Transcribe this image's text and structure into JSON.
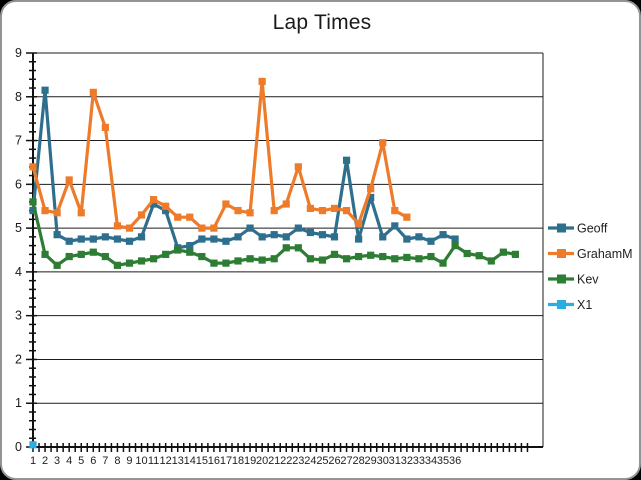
{
  "window": {
    "background_color": "#000000",
    "frame_fill": "#ffffff",
    "frame_border_color": "#949494"
  },
  "chart_data": {
    "type": "line",
    "title": "Lap Times",
    "xlabel": "",
    "ylabel": "",
    "ylim": [
      0,
      9
    ],
    "y_tick_step": 1,
    "y_minor_tick_step": 0.2,
    "grid": true,
    "legend_position": "right-middle",
    "x_tick_labels": [
      "1",
      "2",
      "3",
      "4",
      "5",
      "6",
      "7",
      "8",
      "9",
      "10",
      "11",
      "12",
      "13",
      "14",
      "15",
      "16",
      "17",
      "18",
      "19",
      "20",
      "21",
      "22",
      "23",
      "24",
      "25",
      "26",
      "27",
      "28",
      "29",
      "30",
      "31",
      "32",
      "33",
      "34",
      "35",
      "36"
    ],
    "x_axis_tick_extent": 42,
    "x_minor_tick_step": 0.5,
    "axis_color": "#111111",
    "grid_color": "#1c1c1c",
    "series": [
      {
        "name": "Geoff",
        "color": "#2e6f8e",
        "start_x": 1,
        "values": [
          5.4,
          8.15,
          4.85,
          4.7,
          4.75,
          4.75,
          4.8,
          4.75,
          4.7,
          4.8,
          5.55,
          5.4,
          4.55,
          4.6,
          4.75,
          4.75,
          4.7,
          4.8,
          5.0,
          4.8,
          4.85,
          4.8,
          5.0,
          4.9,
          4.85,
          4.8,
          6.55,
          4.75,
          5.7,
          4.8,
          5.05,
          4.75,
          4.8,
          4.7,
          4.85,
          4.75
        ]
      },
      {
        "name": "GrahamM",
        "color": "#ee7b29",
        "start_x": 1,
        "values": [
          6.4,
          5.4,
          5.35,
          6.1,
          5.35,
          8.1,
          7.3,
          5.05,
          5.0,
          5.3,
          5.65,
          5.5,
          5.25,
          5.25,
          5.0,
          5.0,
          5.55,
          5.4,
          5.35,
          8.35,
          5.4,
          5.55,
          6.4,
          5.45,
          5.4,
          5.45,
          5.4,
          5.1,
          5.9,
          6.95,
          5.4,
          5.25
        ]
      },
      {
        "name": "Kev",
        "color": "#2e7d34",
        "start_x": 1,
        "values": [
          5.6,
          4.4,
          4.15,
          4.35,
          4.4,
          4.45,
          4.35,
          4.15,
          4.2,
          4.25,
          4.3,
          4.4,
          4.5,
          4.45,
          4.35,
          4.2,
          4.2,
          4.25,
          4.3,
          4.27,
          4.3,
          4.55,
          4.55,
          4.3,
          4.27,
          4.4,
          4.3,
          4.35,
          4.38,
          4.35,
          4.3,
          4.33,
          4.3,
          4.35,
          4.2,
          4.6,
          4.42,
          4.37,
          4.25,
          4.45,
          4.4
        ]
      },
      {
        "name": "X1",
        "color": "#2bace2",
        "start_x": 1,
        "values": [
          0.05
        ]
      }
    ]
  }
}
